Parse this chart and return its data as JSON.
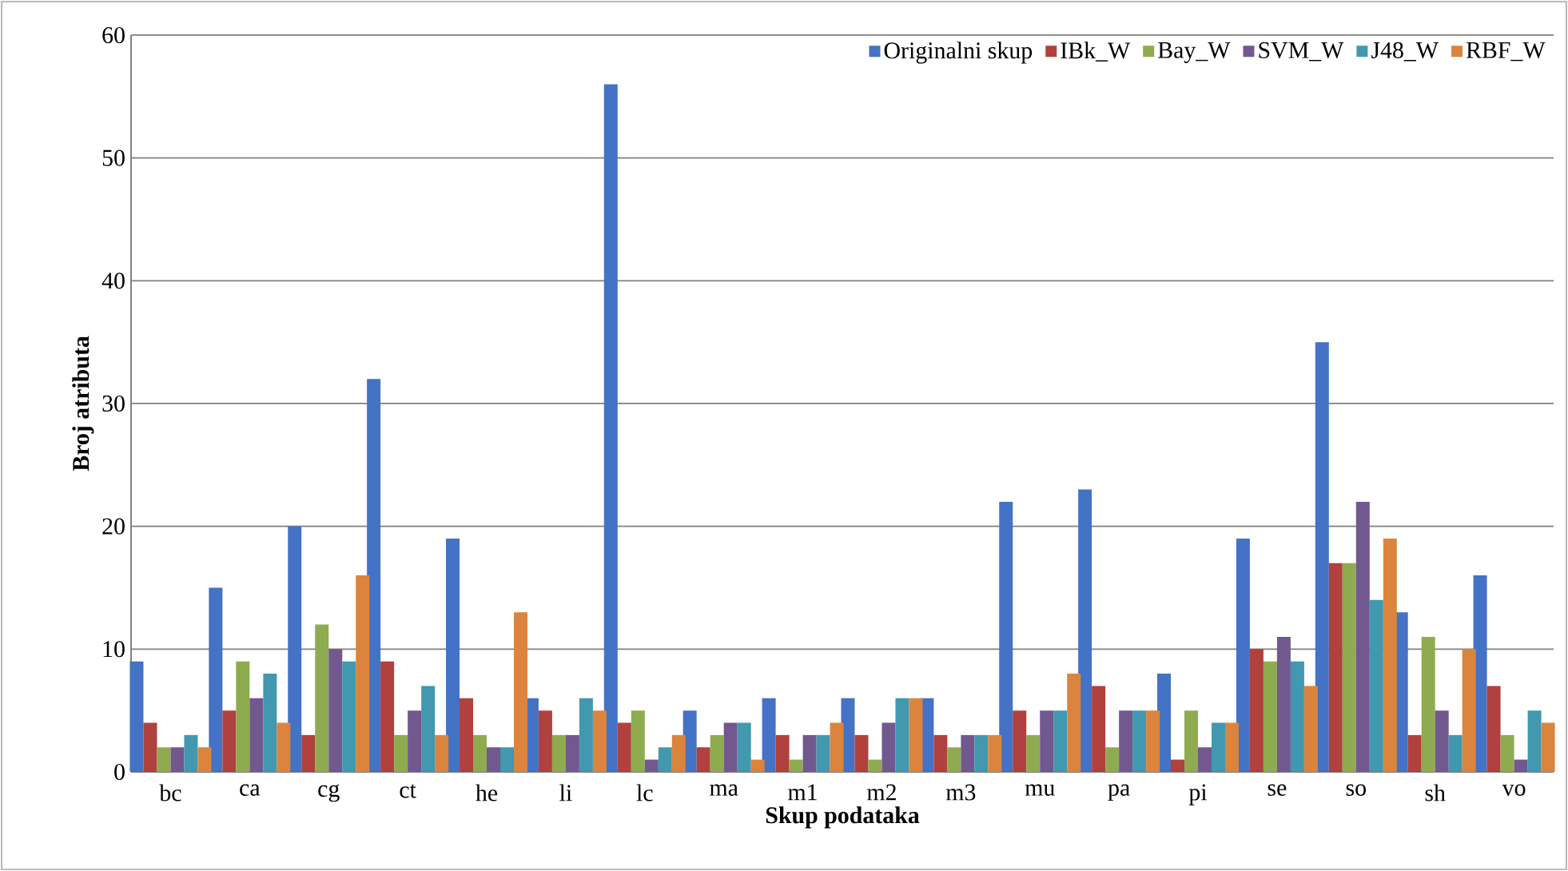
{
  "chart_data": {
    "type": "bar",
    "xlabel": "Skup podataka",
    "ylabel": "Broj atributa",
    "categories": [
      "bc",
      "ca",
      "cg",
      "ct",
      "he",
      "li",
      "lc",
      "ma",
      "m1",
      "m2",
      "m3",
      "mu",
      "pa",
      "pi",
      "se",
      "so",
      "sh",
      "vo"
    ],
    "series": [
      {
        "name": "Originalni skup",
        "color": "#4472c4",
        "values": [
          9,
          15,
          20,
          32,
          19,
          6,
          56,
          5,
          6,
          6,
          6,
          22,
          23,
          8,
          19,
          35,
          13,
          16
        ]
      },
      {
        "name": "IBk_W",
        "color": "#b0413e",
        "values": [
          4,
          5,
          3,
          9,
          6,
          5,
          4,
          2,
          3,
          3,
          3,
          5,
          7,
          1,
          10,
          17,
          3,
          7
        ]
      },
      {
        "name": "Bay_W",
        "color": "#8fab4f",
        "values": [
          2,
          9,
          12,
          3,
          3,
          3,
          5,
          3,
          1,
          1,
          2,
          3,
          2,
          5,
          9,
          17,
          11,
          3
        ]
      },
      {
        "name": "SVM_W",
        "color": "#71588f",
        "values": [
          2,
          6,
          10,
          5,
          2,
          3,
          1,
          4,
          3,
          4,
          3,
          5,
          5,
          2,
          11,
          22,
          5,
          1
        ]
      },
      {
        "name": "J48_W",
        "color": "#4198af",
        "values": [
          3,
          8,
          9,
          7,
          2,
          6,
          2,
          4,
          3,
          6,
          3,
          5,
          5,
          4,
          9,
          14,
          3,
          5
        ]
      },
      {
        "name": "RBF_W",
        "color": "#db843d",
        "values": [
          2,
          4,
          16,
          3,
          13,
          5,
          3,
          1,
          4,
          6,
          3,
          8,
          5,
          4,
          7,
          19,
          10,
          4
        ]
      }
    ],
    "ylim": [
      0,
      60
    ],
    "yticks": [
      0,
      10,
      20,
      30,
      40,
      50,
      60
    ],
    "grid": "y",
    "legend": "top right"
  }
}
